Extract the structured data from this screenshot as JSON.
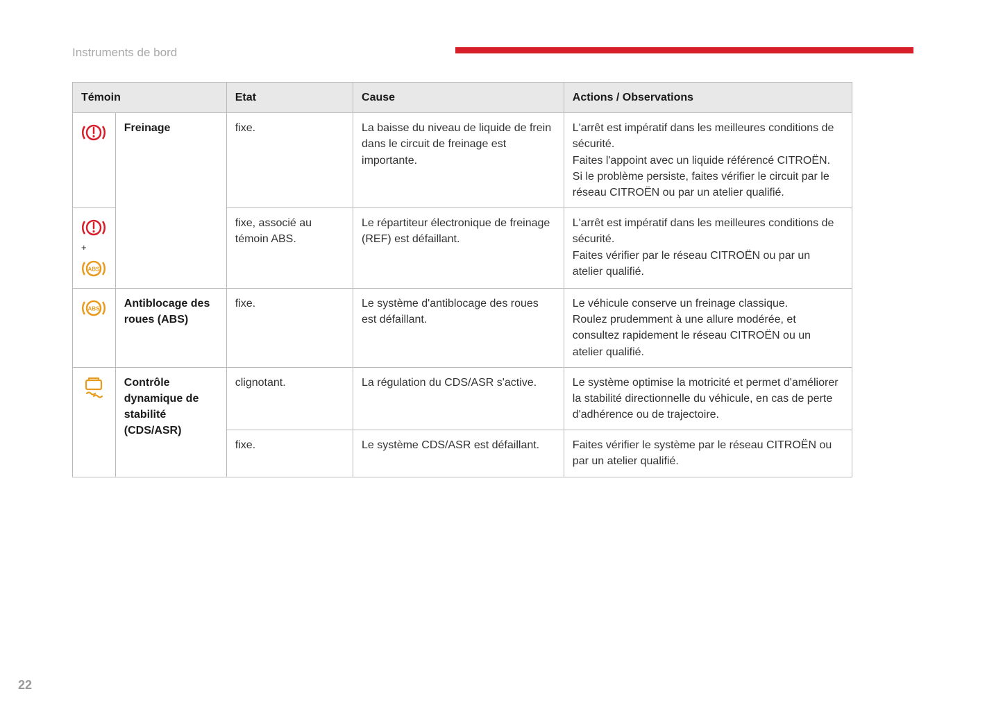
{
  "header_title": "Instruments de bord",
  "page_number": "22",
  "accent_color": "#d71f2c",
  "table": {
    "columns": [
      "Témoin",
      "Etat",
      "Cause",
      "Actions / Observations"
    ],
    "icon_colors": {
      "brake": "#d71f2c",
      "abs": "#e89c1f",
      "cds": "#e89c1f"
    },
    "rows": [
      {
        "name": "Freinage",
        "etat": "fixe.",
        "cause": "La baisse du niveau de liquide de frein dans le circuit de freinage est importante.",
        "action": "L'arrêt est impératif dans les meilleures conditions de sécurité.\nFaites l'appoint avec un liquide référencé CITROËN.\nSi le problème persiste, faites vérifier le circuit par le réseau CITROËN ou par un atelier qualifié."
      },
      {
        "name": "",
        "etat": "fixe, associé au témoin ABS.",
        "cause": "Le répartiteur électronique de freinage (REF) est défaillant.",
        "action": "L'arrêt est impératif dans les meilleures conditions de sécurité.\nFaites vérifier par le réseau CITROËN ou par un atelier qualifié."
      },
      {
        "name": "Antiblocage des roues (ABS)",
        "etat": "fixe.",
        "cause": "Le système d'antiblocage des roues est défaillant.",
        "action": "Le véhicule conserve un freinage classique.\nRoulez prudemment à une allure modérée, et consultez rapidement le réseau CITROËN ou un atelier qualifié."
      },
      {
        "name": "Contrôle dynamique de stabilité (CDS/ASR)",
        "etat": "clignotant.",
        "cause": "La régulation du CDS/ASR s'active.",
        "action": "Le système optimise la motricité et permet d'améliorer la stabilité directionnelle du véhicule, en cas de perte d'adhérence ou de trajectoire."
      },
      {
        "name": "",
        "etat": "fixe.",
        "cause": "Le système CDS/ASR est défaillant.",
        "action": "Faites vérifier le système par le réseau CITROËN ou par un atelier qualifié."
      }
    ]
  }
}
